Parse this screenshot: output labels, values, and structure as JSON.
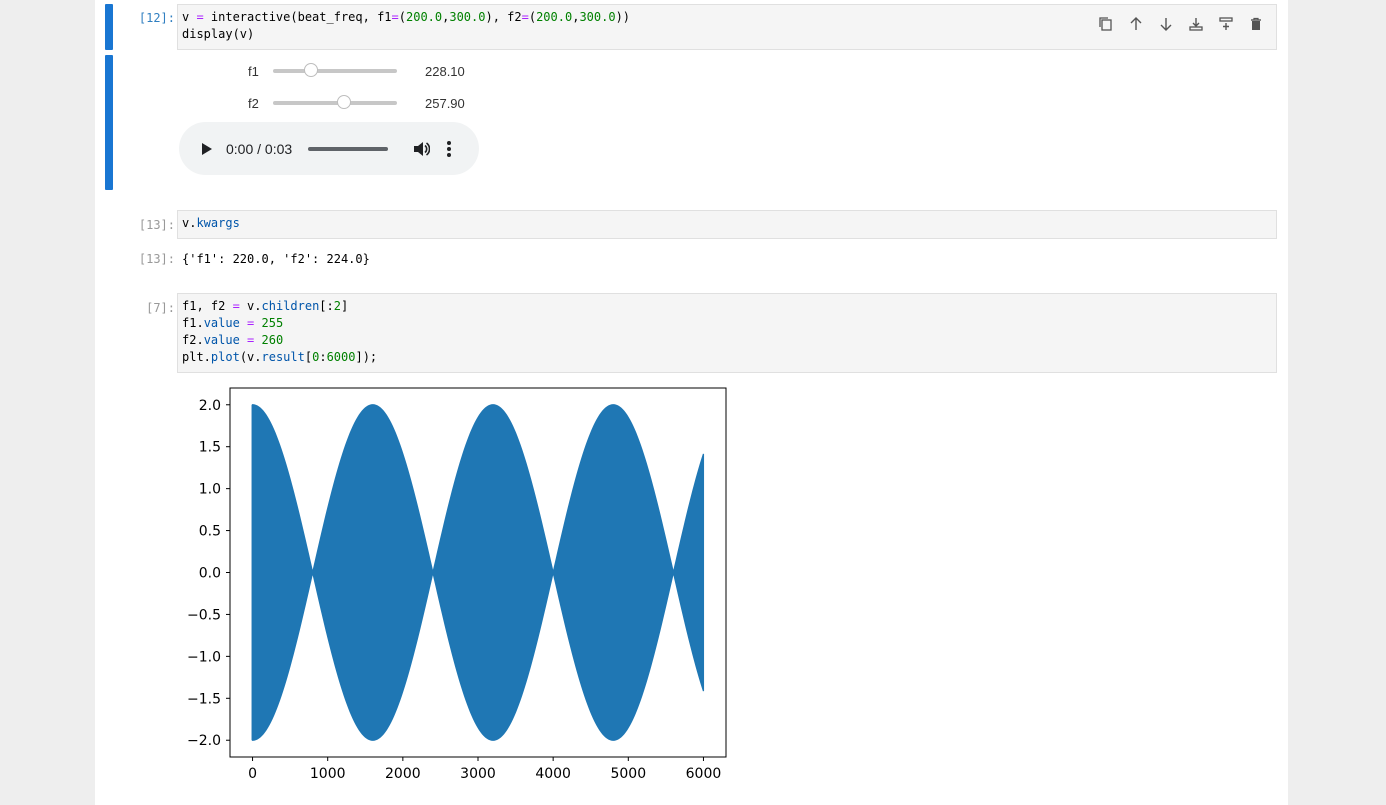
{
  "cells": {
    "c12": {
      "prompt": "[12]:",
      "code": {
        "l1_a": "v ",
        "l1_eq": "=",
        "l1_b": " interactive(beat_freq, f1",
        "l1_eq2": "=",
        "l1_c": "(",
        "l1_n1": "200.0",
        "l1_d": ",",
        "l1_n2": "300.0",
        "l1_e": "), f2",
        "l1_eq3": "=",
        "l1_f": "(",
        "l1_n3": "200.0",
        "l1_g": ",",
        "l1_n4": "300.0",
        "l1_h": "))",
        "l2": "display(v)"
      },
      "widgets": {
        "f1": {
          "label": "f1",
          "value": "228.10",
          "fraction": 0.281
        },
        "f2": {
          "label": "f2",
          "value": "257.90",
          "fraction": 0.579
        }
      },
      "audio": {
        "time": "0:00 / 0:03"
      }
    },
    "c13_in": {
      "prompt": "[13]:",
      "code_a": "v.",
      "code_b": "kwargs"
    },
    "c13_out": {
      "prompt": "[13]:",
      "text": "{'f1': 220.0, 'f2': 224.0}"
    },
    "c7": {
      "prompt": "[7]:",
      "l1_a": "f1, f2 ",
      "l1_eq": "=",
      "l1_b": " v.",
      "l1_c": "children",
      "l1_d": "[:",
      "l1_n": "2",
      "l1_e": "]",
      "l2_a": "f1.",
      "l2_b": "value",
      "l2_eq": " = ",
      "l2_n": "255",
      "l3_a": "f2.",
      "l3_b": "value",
      "l3_eq": " = ",
      "l3_n": "260",
      "l4_a": "plt.",
      "l4_b": "plot",
      "l4_c": "(v.",
      "l4_d": "result",
      "l4_e": "[",
      "l4_n1": "0",
      "l4_f": ":",
      "l4_n2": "6000",
      "l4_g": "]);"
    }
  },
  "toolbar_icons": [
    "copy-icon",
    "move-up-icon",
    "move-down-icon",
    "insert-above-icon",
    "insert-below-icon",
    "delete-icon"
  ],
  "colors": {
    "accent": "#1976d2",
    "line": "#1f77b4"
  },
  "chart_data": {
    "type": "line",
    "title": "",
    "xlabel": "",
    "ylabel": "",
    "series": [
      {
        "samples": 6000,
        "envelope_amplitude": 2.0,
        "envelope_zero_crossings_x": [
          800,
          2400,
          4000,
          5600
        ],
        "envelope_peaks_x": [
          0,
          1600,
          3200,
          4800
        ],
        "end_amplitude": 1.35
      }
    ],
    "xlim": [
      -300,
      6300
    ],
    "ylim": [
      -2.2,
      2.2
    ],
    "xticks": [
      "0",
      "1000",
      "2000",
      "3000",
      "4000",
      "5000",
      "6000"
    ],
    "yticks": [
      "2.0",
      "1.5",
      "1.0",
      "0.5",
      "0.0",
      "−0.5",
      "−1.0",
      "−1.5",
      "−2.0"
    ],
    "grid": false
  }
}
